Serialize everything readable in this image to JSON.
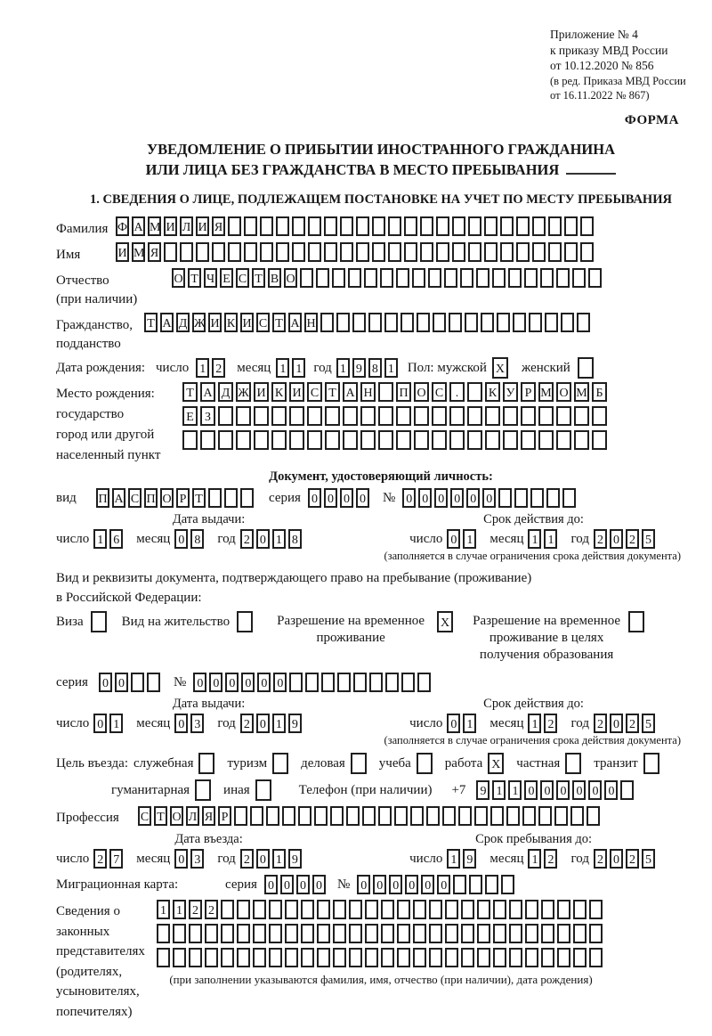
{
  "header": {
    "ref1": "Приложение № 4",
    "ref2": "к приказу МВД России",
    "ref3": "от 10.12.2020 № 856",
    "amend1": "(в ред. Приказа МВД России",
    "amend2": "от 16.11.2022 № 867)",
    "form_label": "ФОРМА"
  },
  "title": {
    "line1": "УВЕДОМЛЕНИЕ О ПРИБЫТИИ ИНОСТРАННОГО ГРАЖДАНИНА",
    "line2": "ИЛИ ЛИЦА БЕЗ ГРАЖДАНСТВА В МЕСТО ПРЕБЫВАНИЯ"
  },
  "section1_heading": "1. СВЕДЕНИЯ О ЛИЦЕ, ПОДЛЕЖАЩЕМ ПОСТАНОВКЕ НА УЧЕТ ПО МЕСТУ ПРЕБЫВАНИЯ",
  "labels": {
    "day": "число",
    "month": "месяц",
    "year": "год",
    "series": "серия",
    "number": "№",
    "issue": "Дата выдачи:",
    "expiry": "Срок действия до:",
    "expiry_note": "(заполняется в случае ограничения срока действия документа)"
  },
  "person": {
    "surname": {
      "label": "Фамилия",
      "value": "ФАМИЛИЯ",
      "boxes": 30
    },
    "name": {
      "label": "Имя",
      "value": "ИМЯ",
      "boxes": 30
    },
    "patronymic": {
      "label": "Отчество",
      "label2": "(при наличии)",
      "value": "ОТЧЕСТВО",
      "boxes": 27
    },
    "citizenship": {
      "label": "Гражданство,",
      "label2": "подданство",
      "value": "ТАДЖИКИСТАН",
      "boxes": 28
    },
    "birth_date": {
      "label": "Дата рождения:",
      "day": "12",
      "month": "11",
      "year": "1981"
    },
    "sex": {
      "label": "Пол: мужской",
      "male_checked": "X",
      "female_label": "женский",
      "female_checked": ""
    },
    "birth_place": {
      "label": "Место рождения:",
      "sublabel1": "государство",
      "sublabel2": "город или другой",
      "sublabel3": "населенный пункт",
      "row1": "ТАДЖИКИСТАН ПОС. КУРМОМБ",
      "row2": {
        "value": "ЕЗ",
        "boxes": 24
      },
      "row3": {
        "value": "",
        "boxes": 24
      }
    }
  },
  "identity_doc": {
    "heading": "Документ, удостоверяющий личность:",
    "kind_label": "вид",
    "kind": {
      "value": "ПАСПОРТ",
      "boxes": 10
    },
    "series": "0000",
    "number": {
      "value": "000000",
      "boxes": 11
    },
    "issue": {
      "day": "16",
      "month": "08",
      "year": "2018"
    },
    "expiry": {
      "day": "01",
      "month": "11",
      "year": "2025"
    }
  },
  "residence_doc": {
    "intro1": "Вид и реквизиты документа, подтверждающего право на пребывание (проживание)",
    "intro2": "в Российской Федерации:",
    "opt_visa": {
      "label": "Виза",
      "checked": ""
    },
    "opt_residence_permit": {
      "label": "Вид на жительство",
      "checked": ""
    },
    "opt_temp_residence": {
      "label": "Разрешение на временное проживание",
      "checked": "X"
    },
    "opt_temp_residence_edu": {
      "label": "Разрешение на временное проживание в целях получения образования",
      "checked": ""
    },
    "series": {
      "value": "00",
      "boxes": 4
    },
    "number": {
      "value": "000000",
      "boxes": 15
    },
    "issue": {
      "day": "01",
      "month": "03",
      "year": "2019"
    },
    "expiry": {
      "day": "01",
      "month": "12",
      "year": "2025"
    }
  },
  "purpose": {
    "label": "Цель въезда:",
    "options": [
      {
        "label": "служебная",
        "checked": ""
      },
      {
        "label": "туризм",
        "checked": ""
      },
      {
        "label": "деловая",
        "checked": ""
      },
      {
        "label": "учеба",
        "checked": ""
      },
      {
        "label": "работа",
        "checked": "X"
      },
      {
        "label": "частная",
        "checked": ""
      },
      {
        "label": "транзит",
        "checked": ""
      },
      {
        "label": "гуманитарная",
        "checked": ""
      },
      {
        "label": "иная",
        "checked": ""
      }
    ],
    "phone_label": "Телефон (при наличии)",
    "phone_prefix": "+7",
    "phone": {
      "value": "911000000",
      "boxes": 10
    }
  },
  "profession": {
    "label": "Профессия",
    "value": "СТОЛЯР",
    "boxes": 29
  },
  "entry": {
    "date_label": "Дата въезда:",
    "date": {
      "day": "27",
      "month": "03",
      "year": "2019"
    },
    "stay_label": "Срок пребывания до:",
    "stay": {
      "day": "19",
      "month": "12",
      "year": "2025"
    }
  },
  "migration_card": {
    "label": "Миграционная карта:",
    "series": "0000",
    "number": {
      "value": "000000",
      "boxes": 10
    }
  },
  "representatives": {
    "label1": "Сведения о",
    "label2": "законных",
    "label3": "представителях",
    "label4": "(родителях,",
    "label5": "усыновителях,",
    "label6": "попечителях)",
    "row1": {
      "value": "1122",
      "boxes": 28
    },
    "row2": {
      "value": "",
      "boxes": 28
    },
    "row3": {
      "value": "",
      "boxes": 28
    },
    "note": "(при заполнении указываются фамилия, имя, отчество (при наличии), дата рождения)"
  }
}
